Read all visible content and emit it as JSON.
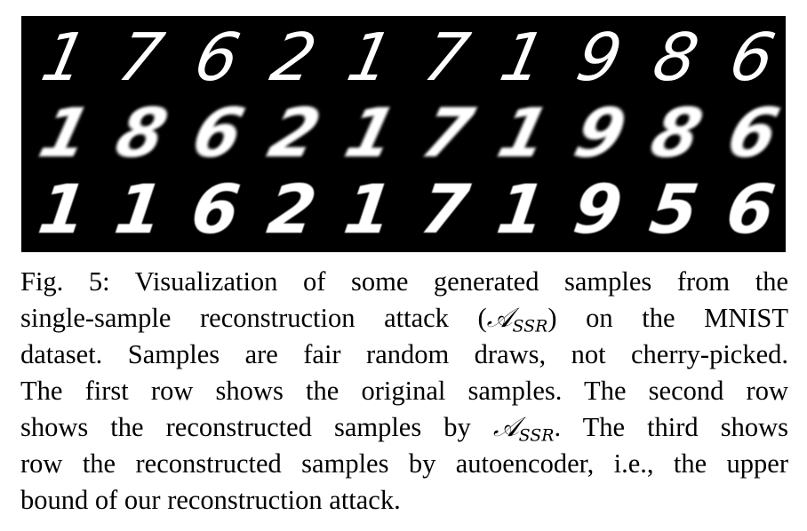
{
  "figure": {
    "background": "#000000",
    "digit_color": "#ffffff",
    "rows": [
      {
        "name": "original",
        "digits": [
          "1",
          "7",
          "6",
          "2",
          "1",
          "7",
          "1",
          "9",
          "8",
          "6"
        ]
      },
      {
        "name": "reconstructed-assr",
        "digits": [
          "1",
          "8",
          "6",
          "2",
          "1",
          "7",
          "1",
          "9",
          "8",
          "6"
        ]
      },
      {
        "name": "reconstructed-autoencoder",
        "digits": [
          "1",
          "1",
          "6",
          "2",
          "1",
          "7",
          "1",
          "9",
          "5",
          "6"
        ]
      }
    ]
  },
  "caption": {
    "line1": "Fig. 5: Visualization of some generated samples from the",
    "line2_a": "single-sample reconstruction attack (",
    "math_symbol": "𝒜",
    "math_sub": "SSR",
    "line2_b": ") on the MNIST",
    "line3": "dataset. Samples are fair random draws, not cherry-picked.",
    "line4": "The first row shows the original samples. The second row",
    "line5_a": "shows the reconstructed samples by ",
    "line5_b": ". The third shows",
    "line6": "row the reconstructed samples by autoencoder, i.e., the upper",
    "line7": "bound of our reconstruction attack."
  }
}
